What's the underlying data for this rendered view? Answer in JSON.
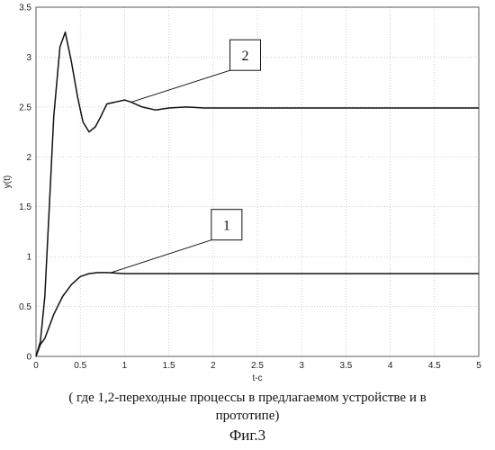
{
  "chart_data": {
    "type": "line",
    "xlabel": "t-c",
    "ylabel": "y(t)",
    "xlim": [
      0,
      5
    ],
    "ylim": [
      0,
      3.5
    ],
    "xticks": [
      "0",
      "0.5",
      "1",
      "1.5",
      "2",
      "2.5",
      "3",
      "3.5",
      "4",
      "4.5",
      "5"
    ],
    "yticks": [
      "0",
      "0.5",
      "1",
      "1.5",
      "2",
      "2.5",
      "3",
      "3.5"
    ],
    "grid": true,
    "series": [
      {
        "name": "1",
        "x": [
          0,
          0.05,
          0.1,
          0.15,
          0.2,
          0.3,
          0.4,
          0.5,
          0.6,
          0.7,
          0.8,
          1.0,
          1.5,
          2,
          3,
          4,
          5
        ],
        "y": [
          0,
          0.12,
          0.18,
          0.3,
          0.42,
          0.6,
          0.72,
          0.8,
          0.83,
          0.84,
          0.84,
          0.83,
          0.83,
          0.83,
          0.83,
          0.83,
          0.83
        ]
      },
      {
        "name": "2",
        "x": [
          0,
          0.05,
          0.1,
          0.15,
          0.2,
          0.27,
          0.33,
          0.4,
          0.47,
          0.53,
          0.6,
          0.67,
          0.73,
          0.8,
          0.9,
          1.0,
          1.07,
          1.2,
          1.35,
          1.5,
          1.7,
          1.9,
          2.2,
          3,
          4,
          5
        ],
        "y": [
          0,
          0.15,
          0.6,
          1.5,
          2.4,
          3.1,
          3.25,
          2.95,
          2.6,
          2.35,
          2.25,
          2.3,
          2.4,
          2.53,
          2.55,
          2.57,
          2.55,
          2.5,
          2.47,
          2.49,
          2.5,
          2.49,
          2.49,
          2.49,
          2.49,
          2.49
        ]
      }
    ],
    "annotations": [
      {
        "label": "1",
        "series": "1"
      },
      {
        "label": "2",
        "series": "2"
      }
    ]
  },
  "caption": {
    "line1": "( где 1,2-переходные процессы в предлагаемом устройстве и в",
    "line2": "прототипе)",
    "figure": "Фиг.3"
  }
}
